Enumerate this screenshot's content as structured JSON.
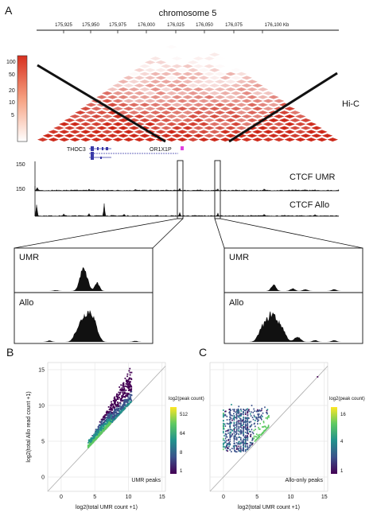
{
  "panels": {
    "a": "A",
    "b": "B",
    "c": "C"
  },
  "hic": {
    "chrom_title": "chromosome 5",
    "ticks": [
      "175,925",
      "175,950",
      "175,975",
      "176,000",
      "176,025",
      "176,050",
      "176,075",
      "176,100 Kb"
    ],
    "scale_ticks": [
      "100",
      "50",
      "20",
      "10",
      "5"
    ],
    "label": "Hi-C",
    "colors": {
      "low": "#ffffff",
      "high": "#d7301f"
    }
  },
  "genes": {
    "g1": "THOC3",
    "g2": "OR1X1P",
    "gene_color": "#3a3aa8",
    "marker_color": "#e040e0"
  },
  "tracks": {
    "umr": {
      "label": "CTCF UMR",
      "max": "150"
    },
    "allo": {
      "label": "CTCF Allo",
      "max": "150"
    }
  },
  "zooms": {
    "left": {
      "umr": "UMR",
      "allo": "Allo"
    },
    "right": {
      "umr": "UMR",
      "allo": "Allo"
    }
  },
  "chart_data": [
    {
      "type": "scatter",
      "panel": "B",
      "xlabel": "log2(total UMR count +1)",
      "ylabel": "log2(total Allo read count +1)",
      "xlim": [
        -2,
        15.5
      ],
      "ylim": [
        -2,
        16
      ],
      "xticks": [
        "0",
        "5",
        "10",
        "15"
      ],
      "yticks": [
        "0",
        "5",
        "10",
        "15"
      ],
      "legend_title": "log2(peak count)",
      "legend_ticks": [
        "512",
        "64",
        "8",
        "1"
      ],
      "annotation": "UMR peaks",
      "diagonal": true,
      "grid": true
    },
    {
      "type": "scatter",
      "panel": "C",
      "xlabel": "log2(total UMR count +1)",
      "ylabel": "",
      "xlim": [
        -2,
        15.5
      ],
      "ylim": [
        -2,
        16
      ],
      "xticks": [
        "0",
        "5",
        "10",
        "15"
      ],
      "legend_title": "log2(peak count)",
      "legend_ticks": [
        "16",
        "4",
        "1"
      ],
      "annotation": "Allo-only peaks",
      "diagonal": true,
      "grid": true
    }
  ]
}
